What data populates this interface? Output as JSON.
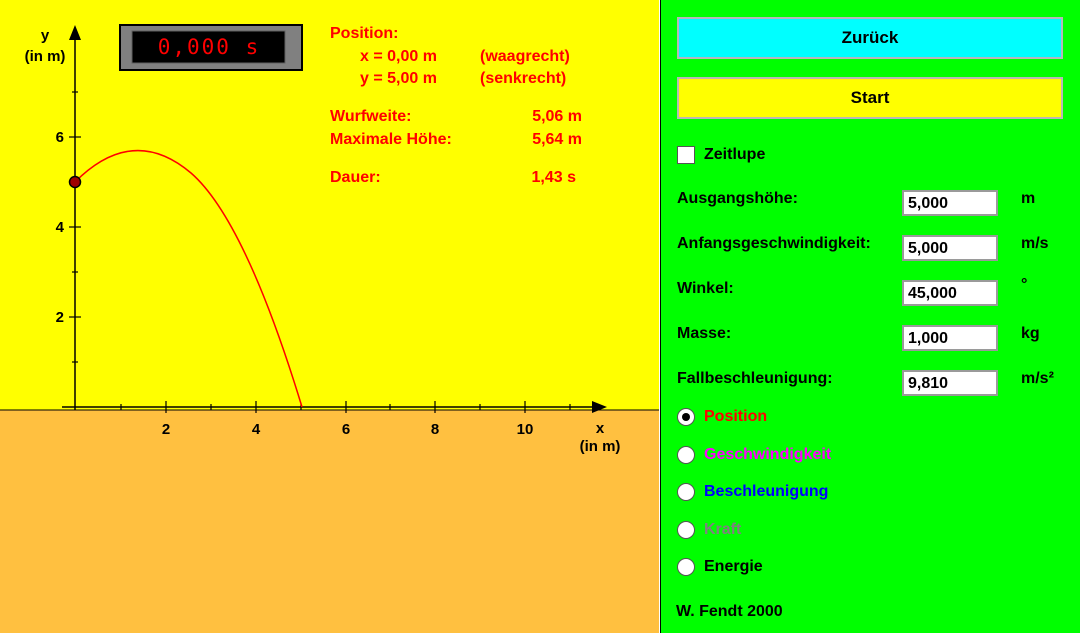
{
  "timer": "0,000 s",
  "info": {
    "position_heading": "Position:",
    "x_line": "x = 0,00 m",
    "x_note": "(waagrecht)",
    "y_line": "y = 5,00 m",
    "y_note": "(senkrecht)",
    "range_label": "Wurfweite:",
    "range_value": "5,06 m",
    "maxh_label": "Maximale Höhe:",
    "maxh_value": "5,64 m",
    "duration_label": "Dauer:",
    "duration_value": "1,43 s"
  },
  "axes": {
    "y_label": "y",
    "y_unit": "(in m)",
    "x_label": "x",
    "x_unit": "(in m)",
    "x_ticks": [
      "2",
      "4",
      "6",
      "8",
      "10"
    ],
    "y_ticks": [
      "2",
      "4",
      "6"
    ]
  },
  "controls": {
    "back_label": "Zurück",
    "start_label": "Start",
    "slowmo_label": "Zeitlupe",
    "slowmo_checked": false,
    "fields": [
      {
        "label": "Ausgangshöhe:",
        "value": "5,000",
        "unit": "m"
      },
      {
        "label": "Anfangsgeschwindigkeit:",
        "value": "5,000",
        "unit": "m/s"
      },
      {
        "label": "Winkel:",
        "value": "45,000",
        "unit": "°"
      },
      {
        "label": "Masse:",
        "value": "1,000",
        "unit": "kg"
      },
      {
        "label": "Fallbeschleunigung:",
        "value": "9,810",
        "unit": "m/s²"
      }
    ],
    "modes": [
      {
        "label": "Position",
        "color": "#ff0000",
        "selected": true
      },
      {
        "label": "Geschwindigkeit",
        "color": "#ff00ff",
        "selected": false
      },
      {
        "label": "Beschleunigung",
        "color": "#0000ff",
        "selected": false
      },
      {
        "label": "Kraft",
        "color": "#808080",
        "selected": false
      },
      {
        "label": "Energie",
        "color": "#000000",
        "selected": false
      }
    ],
    "credit": "W. Fendt 2000"
  },
  "colors": {
    "sky": "#ffff00",
    "ground": "#ffc040",
    "panel": "#00ff00",
    "trajectory": "#ff0000",
    "info_text": "#ff0000"
  }
}
